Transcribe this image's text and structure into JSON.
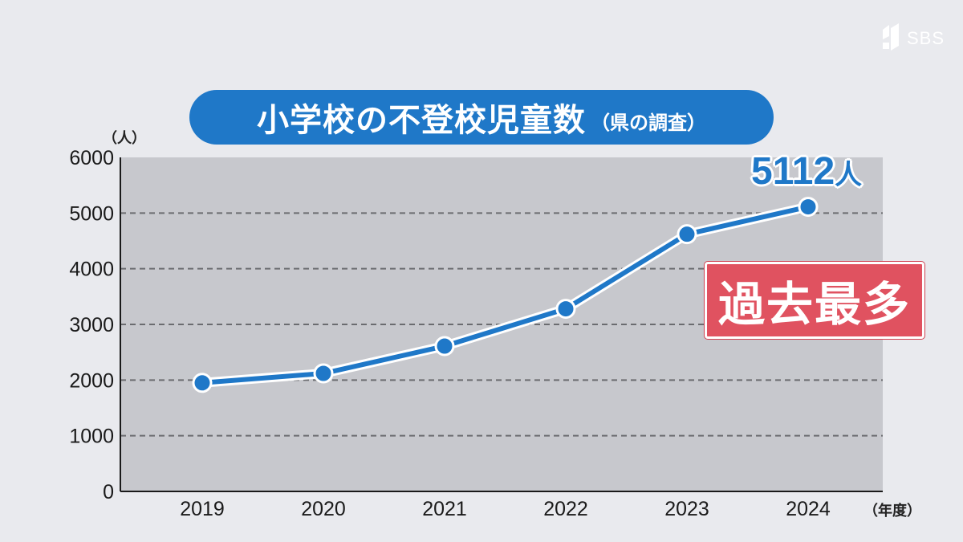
{
  "logo": {
    "text": "SBS"
  },
  "title": {
    "main": "小学校の不登校児童数",
    "sub": "（県の調査）"
  },
  "colors": {
    "accent": "#1f78c8",
    "badge": "#e05260",
    "plot_bg": "#c7c8cd"
  },
  "callout": {
    "value": "5112",
    "unit": "人"
  },
  "badge": {
    "label": "過去最多"
  },
  "chart_data": {
    "type": "line",
    "title": "小学校の不登校児童数（県の調査）",
    "y_unit": "（人）",
    "x_unit": "（年度）",
    "categories": [
      "2019",
      "2020",
      "2021",
      "2022",
      "2023",
      "2024"
    ],
    "series": [
      {
        "values": [
          1950,
          2120,
          2610,
          3280,
          4620,
          5112
        ]
      }
    ],
    "ylim": [
      0,
      6000
    ],
    "yticks": [
      0,
      1000,
      2000,
      3000,
      4000,
      5000,
      6000
    ],
    "grid": true
  }
}
